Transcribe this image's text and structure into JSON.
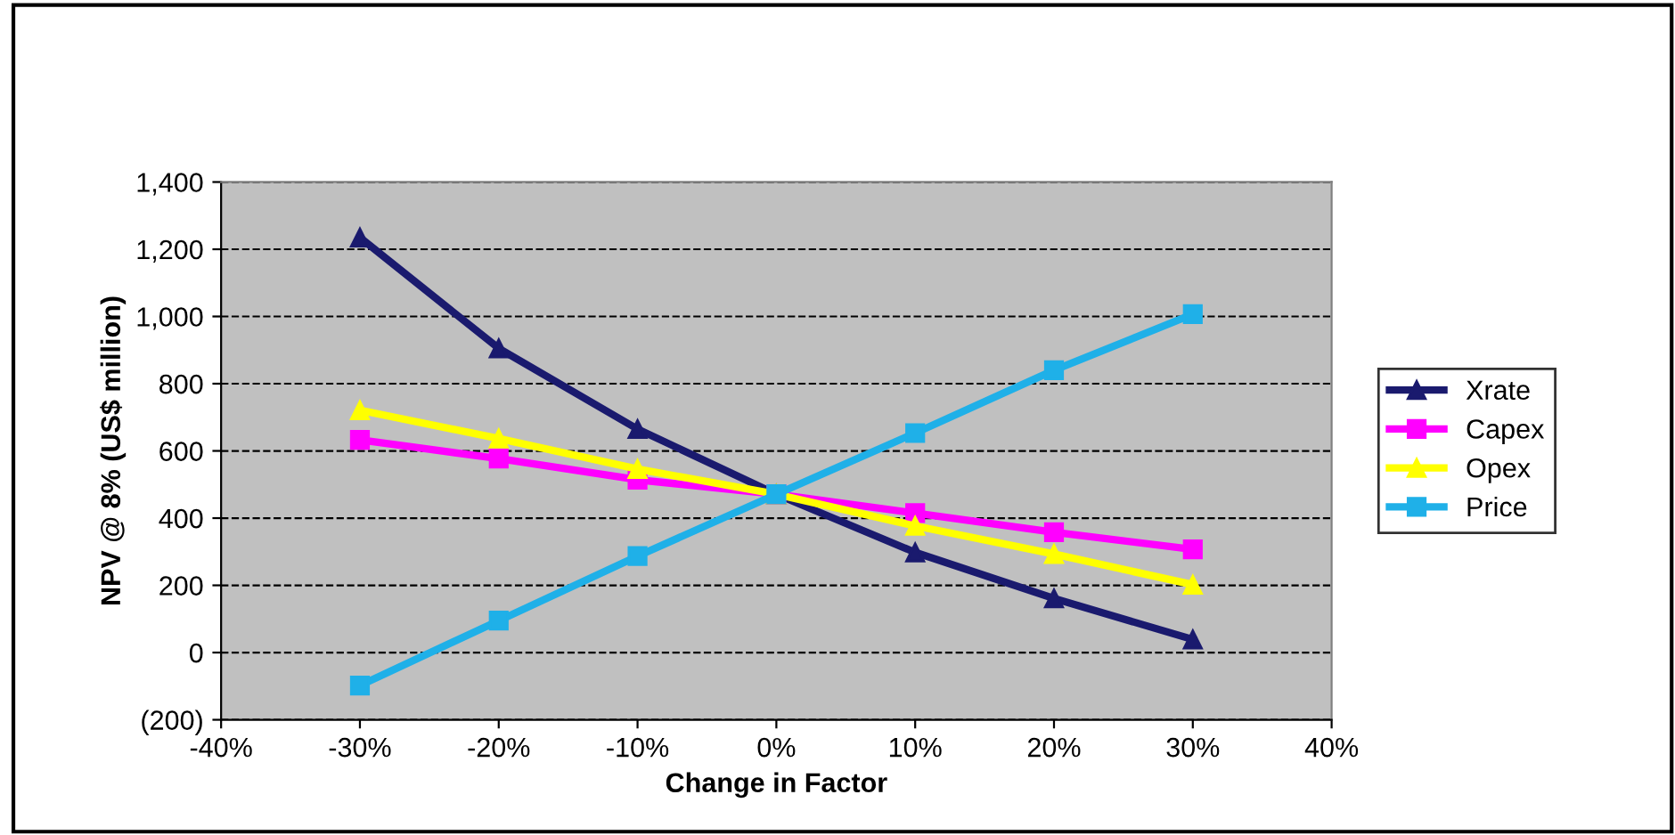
{
  "chart_data": {
    "type": "line",
    "xlabel": "Change in Factor",
    "ylabel": "NPV @ 8% (US$ million)",
    "x": [
      -30,
      -20,
      -10,
      0,
      10,
      20,
      30
    ],
    "series": [
      {
        "name": "Xrate",
        "color": "#1a1a6e",
        "marker": "triangle",
        "values": [
          1235,
          905,
          665,
          471,
          298,
          161,
          39
        ]
      },
      {
        "name": "Capex",
        "color": "#ff00ff",
        "marker": "square",
        "values": [
          633,
          577,
          514,
          471,
          415,
          358,
          307
        ]
      },
      {
        "name": "Opex",
        "color": "#ffff00",
        "marker": "triangle",
        "values": [
          721,
          637,
          546,
          471,
          377,
          293,
          202
        ]
      },
      {
        "name": "Price",
        "color": "#1fb0e8",
        "marker": "square",
        "values": [
          -98,
          95,
          287,
          471,
          653,
          840,
          1007
        ]
      }
    ],
    "xlim": [
      -40,
      40
    ],
    "xticks": [
      {
        "value": -40,
        "label": "-40%"
      },
      {
        "value": -30,
        "label": "-30%"
      },
      {
        "value": -20,
        "label": "-20%"
      },
      {
        "value": -10,
        "label": "-10%"
      },
      {
        "value": 0,
        "label": "0%"
      },
      {
        "value": 10,
        "label": "10%"
      },
      {
        "value": 20,
        "label": "20%"
      },
      {
        "value": 30,
        "label": "30%"
      },
      {
        "value": 40,
        "label": "40%"
      }
    ],
    "ylim": [
      -200,
      1400
    ],
    "yticks": [
      {
        "value": -200,
        "label": "(200)"
      },
      0,
      200,
      400,
      600,
      800,
      {
        "value": 1000,
        "label": "1,000"
      },
      {
        "value": 1200,
        "label": "1,200"
      },
      {
        "value": 1400,
        "label": "1,400"
      }
    ],
    "grid": "y",
    "legend": "right",
    "line_style": "solid"
  }
}
